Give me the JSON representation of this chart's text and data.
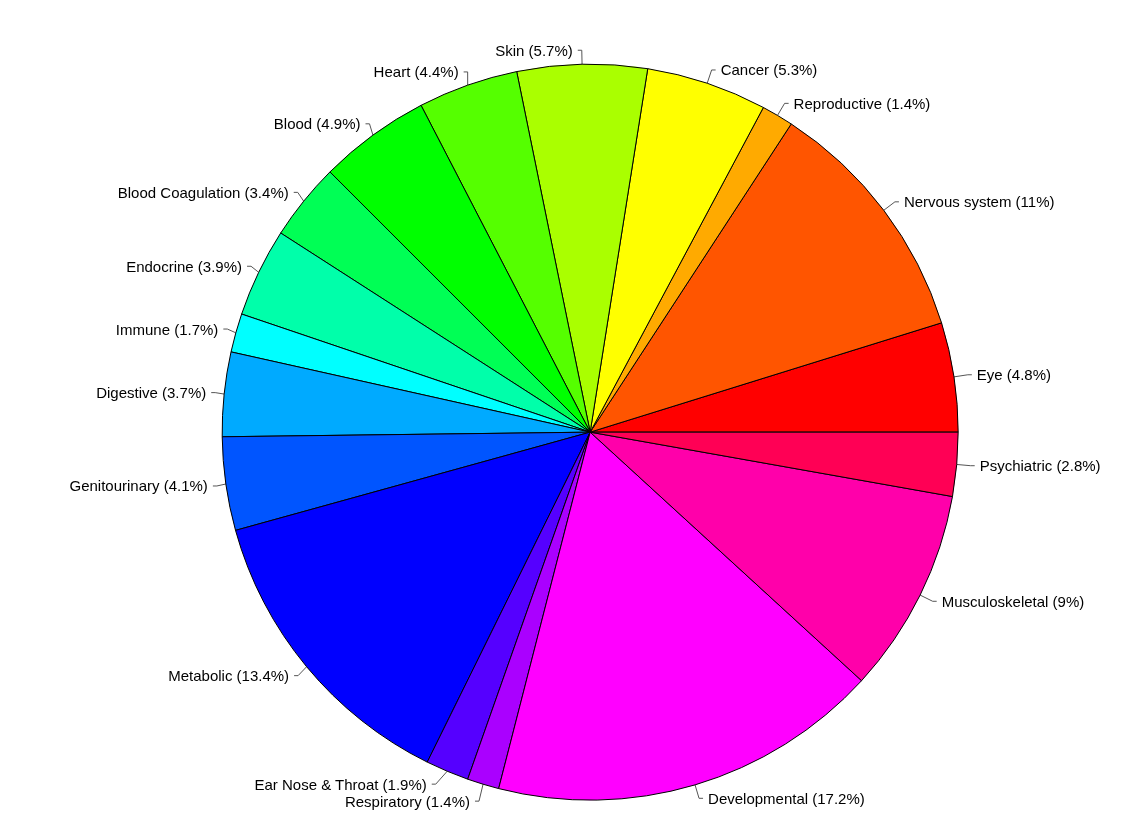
{
  "chart_data": {
    "type": "pie",
    "categories": [
      "Eye (4.8%)",
      "Nervous system (11%)",
      "Reproductive (1.4%)",
      "Cancer (5.3%)",
      "Skin (5.7%)",
      "Heart (4.4%)",
      "Blood (4.9%)",
      "Blood Coagulation (3.4%)",
      "Endocrine (3.9%)",
      "Immune (1.7%)",
      "Digestive (3.7%)",
      "Genitourinary (4.1%)",
      "Metabolic (13.4%)",
      "Ear Nose & Throat (1.9%)",
      "Respiratory (1.4%)",
      "Developmental (17.2%)",
      "Musculoskeletal (9%)",
      "Psychiatric (2.8%)"
    ],
    "values": [
      4.8,
      11,
      1.4,
      5.3,
      5.7,
      4.4,
      4.9,
      3.4,
      3.9,
      1.7,
      3.7,
      4.1,
      13.4,
      1.9,
      1.4,
      17.2,
      9,
      2.8
    ],
    "colors": [
      "#ff0000",
      "#ff5500",
      "#ffaa00",
      "#ffff00",
      "#aaff00",
      "#55ff00",
      "#00ff00",
      "#00ff55",
      "#00ffaa",
      "#00ffff",
      "#00aaff",
      "#0055ff",
      "#0000ff",
      "#5500ff",
      "#aa00ff",
      "#ff00ff",
      "#ff00aa",
      "#ff0055"
    ],
    "legend": false
  }
}
